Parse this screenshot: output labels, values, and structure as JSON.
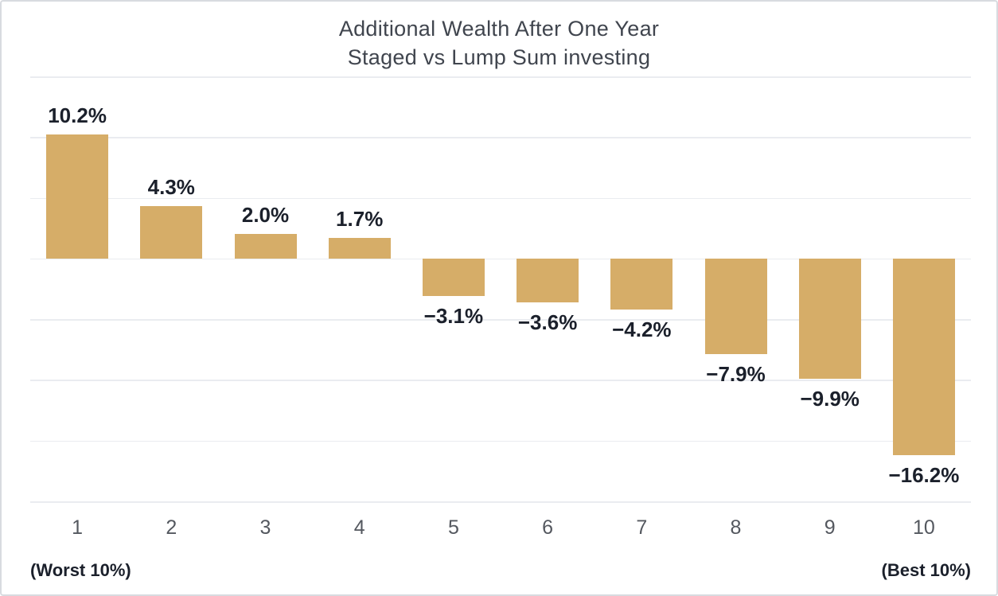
{
  "chart_data": {
    "type": "bar",
    "title": "Additional Wealth After One Year",
    "subtitle": "Staged vs Lump Sum investing",
    "categories": [
      "1",
      "2",
      "3",
      "4",
      "5",
      "6",
      "7",
      "8",
      "9",
      "10"
    ],
    "values": [
      10.2,
      4.3,
      2.0,
      1.7,
      -3.1,
      -3.6,
      -4.2,
      -7.9,
      -9.9,
      -16.2
    ],
    "labels": [
      "10.2%",
      "4.3%",
      "2.0%",
      "1.7%",
      "−3.1%",
      "−3.6%",
      "−4.2%",
      "−7.9%",
      "−9.9%",
      "−16.2%"
    ],
    "x_caption_left": "(Worst 10%)",
    "x_caption_right": "(Best 10%)",
    "xlabel": "",
    "ylabel": "",
    "ylim": [
      -20,
      15
    ],
    "grid_step": 5,
    "grid": true,
    "legend": "none",
    "colors": {
      "bar": "#D6AD68",
      "grid": "#EAECF0",
      "title": "#40454E",
      "value_label": "#1B202B",
      "tick_label": "#54585F",
      "caption": "#1B202B",
      "border": "#D8DBE0",
      "background": "#FFFFFF"
    }
  }
}
